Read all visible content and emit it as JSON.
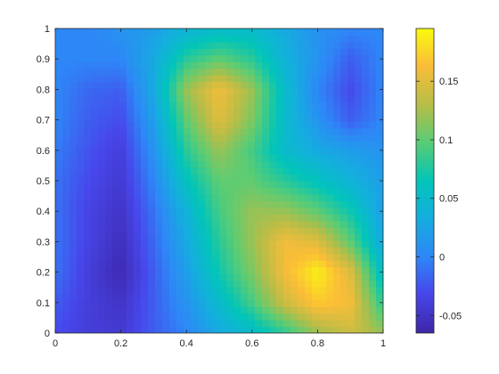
{
  "chart_data": {
    "type": "heatmap",
    "title": "",
    "xlabel": "",
    "ylabel": "",
    "xlim": [
      0,
      1
    ],
    "ylim": [
      0,
      1
    ],
    "x_ticks": [
      "0",
      "0.2",
      "0.4",
      "0.6",
      "0.8",
      "1"
    ],
    "y_ticks": [
      "0",
      "0.1",
      "0.2",
      "0.3",
      "0.4",
      "0.5",
      "0.6",
      "0.7",
      "0.8",
      "0.9",
      "1"
    ],
    "grid": false,
    "colormap": "parula",
    "colorbar": {
      "range": [
        -0.065,
        0.195
      ],
      "ticks": [
        "-0.05",
        "0",
        "0.05",
        "0.1",
        "0.15"
      ],
      "tick_values": [
        -0.05,
        0,
        0.05,
        0.1,
        0.15
      ]
    },
    "grid_x": [
      0,
      0.1,
      0.2,
      0.3,
      0.4,
      0.5,
      0.6,
      0.7,
      0.8,
      0.9,
      1.0
    ],
    "grid_y": [
      0,
      0.1,
      0.2,
      0.3,
      0.4,
      0.5,
      0.6,
      0.7,
      0.8,
      0.9,
      1.0
    ],
    "values": [
      [
        -0.03,
        -0.04,
        -0.045,
        -0.02,
        0.0,
        0.03,
        0.05,
        0.08,
        0.12,
        0.14,
        0.12
      ],
      [
        -0.02,
        -0.04,
        -0.05,
        -0.02,
        0.01,
        0.05,
        0.09,
        0.14,
        0.17,
        0.16,
        0.08
      ],
      [
        -0.01,
        -0.04,
        -0.06,
        -0.02,
        0.02,
        0.07,
        0.11,
        0.16,
        0.19,
        0.15,
        0.05
      ],
      [
        -0.01,
        -0.035,
        -0.055,
        -0.015,
        0.03,
        0.08,
        0.12,
        0.16,
        0.15,
        0.1,
        0.03
      ],
      [
        -0.01,
        -0.035,
        -0.05,
        -0.01,
        0.04,
        0.09,
        0.12,
        0.12,
        0.1,
        0.07,
        0.02
      ],
      [
        -0.01,
        -0.03,
        -0.045,
        0.0,
        0.06,
        0.1,
        0.1,
        0.08,
        0.06,
        0.04,
        0.02
      ],
      [
        -0.005,
        -0.025,
        -0.04,
        0.01,
        0.08,
        0.12,
        0.09,
        0.05,
        0.03,
        0.02,
        0.01
      ],
      [
        0.0,
        -0.02,
        -0.03,
        0.02,
        0.1,
        0.15,
        0.11,
        0.05,
        0.01,
        -0.02,
        0.0
      ],
      [
        0.0,
        -0.015,
        -0.02,
        0.03,
        0.12,
        0.16,
        0.12,
        0.05,
        0.0,
        -0.03,
        0.0
      ],
      [
        0.0,
        0.0,
        0.0,
        0.03,
        0.08,
        0.1,
        0.08,
        0.04,
        0.01,
        -0.02,
        0.0
      ],
      [
        0.0,
        0.0,
        0.01,
        0.02,
        0.04,
        0.05,
        0.05,
        0.03,
        0.01,
        0.0,
        0.0
      ]
    ]
  }
}
